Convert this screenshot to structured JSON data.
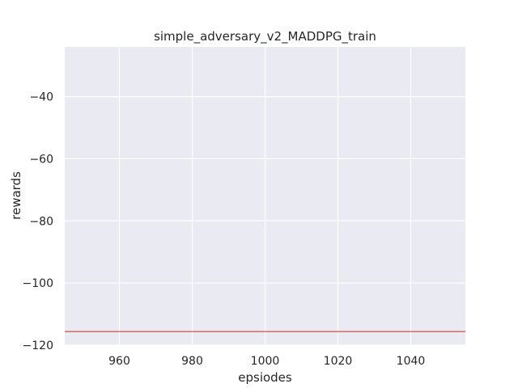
{
  "chart_data": {
    "type": "line",
    "title": "simple_adversary_v2_MADDPG_train",
    "xlabel": "epsiodes",
    "ylabel": "rewards",
    "xlim": [
      945,
      1055
    ],
    "ylim": [
      -120,
      -24
    ],
    "xticks": [
      960,
      980,
      1000,
      1020,
      1040
    ],
    "yticks": [
      -40,
      -60,
      -80,
      -100,
      -120
    ],
    "xtick_labels": [
      "960",
      "980",
      "1000",
      "1020",
      "1040"
    ],
    "ytick_labels": [
      "−40",
      "−60",
      "−80",
      "−100",
      "−120"
    ],
    "grid": true,
    "series": [
      {
        "color": "#d62728",
        "x": [
          945,
          1055
        ],
        "y": [
          -115.6,
          -115.6
        ]
      }
    ],
    "colors": {
      "background": "#eaeaf2",
      "grid": "#ffffff",
      "text": "#262626"
    }
  }
}
